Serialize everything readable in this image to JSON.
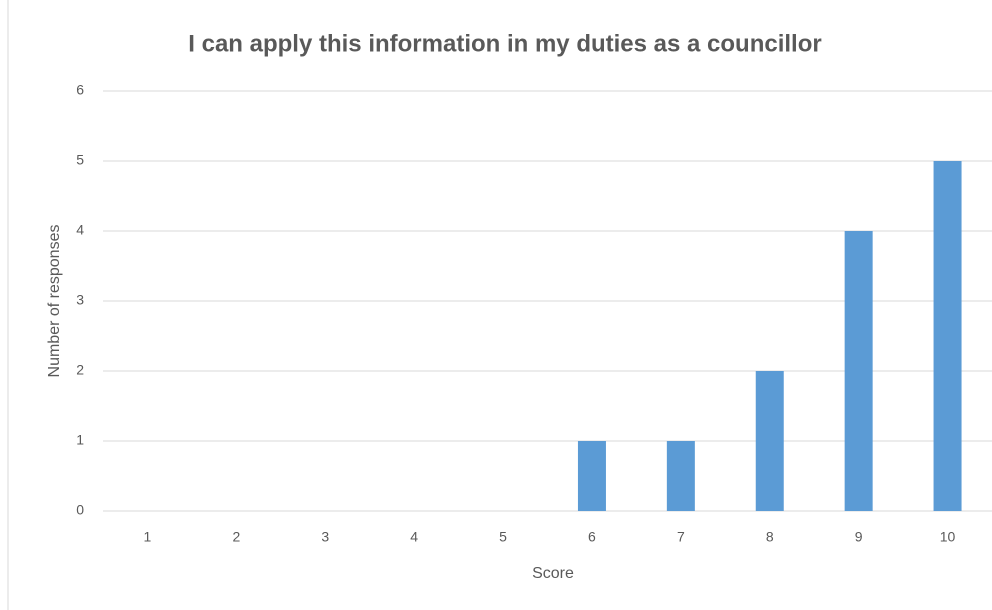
{
  "chart_data": {
    "type": "bar",
    "title": "I can apply this information in my duties as a councillor",
    "x_label": "Score",
    "y_label": "Number of responses",
    "categories": [
      "1",
      "2",
      "3",
      "4",
      "5",
      "6",
      "7",
      "8",
      "9",
      "10"
    ],
    "values": [
      0,
      0,
      0,
      0,
      0,
      1,
      1,
      2,
      4,
      5
    ],
    "color": "#5b9bd5",
    "ylim": [
      0,
      6
    ],
    "yticks": [
      0,
      1,
      2,
      3,
      4,
      5,
      6
    ],
    "grid": true
  }
}
